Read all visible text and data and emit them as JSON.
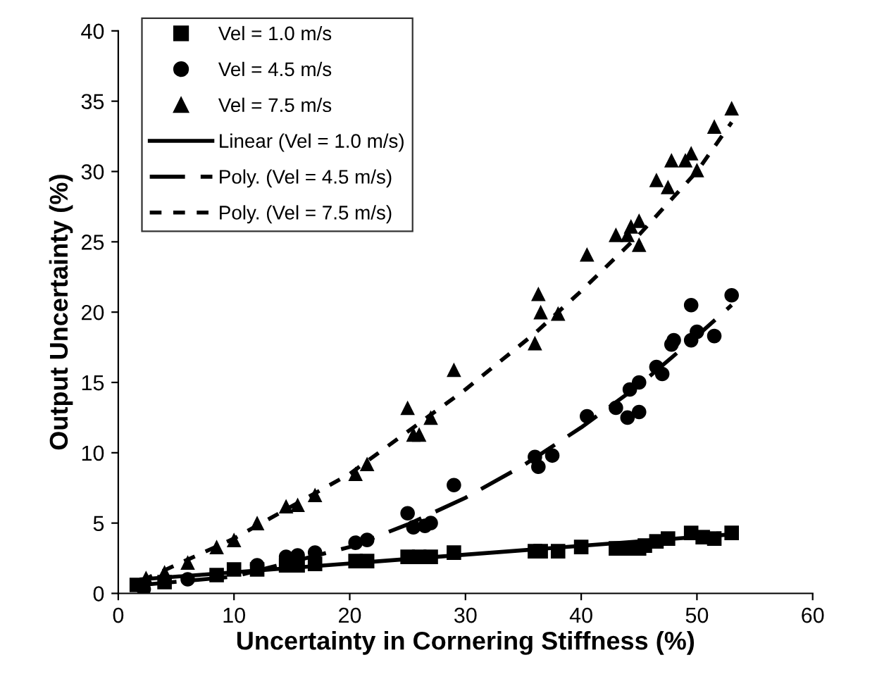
{
  "chart_data": {
    "type": "scatter",
    "xlabel": "Uncertainty in Cornering Stiffness (%)",
    "ylabel": "Output Uncertainty (%)",
    "xlim": [
      0,
      60
    ],
    "xticks": [
      0,
      10,
      20,
      30,
      40,
      50,
      60
    ],
    "ylim": [
      0,
      40
    ],
    "yticks": [
      0,
      5,
      10,
      15,
      20,
      25,
      30,
      35,
      40
    ],
    "grid": false,
    "legend": "top left",
    "series": [
      {
        "name": "Vel = 1.0 m/s",
        "marker": "square",
        "color": "#000000",
        "x": [
          1.6,
          4,
          8.5,
          10,
          12,
          14.5,
          15.5,
          17,
          20.5,
          21.5,
          25,
          26,
          27,
          29,
          36,
          36.5,
          38,
          40,
          43,
          44,
          45,
          45.5,
          46.5,
          47.5,
          49.5,
          50.5,
          51.5,
          53
        ],
        "values": [
          0.6,
          0.8,
          1.3,
          1.7,
          1.7,
          2.0,
          2.0,
          2.1,
          2.3,
          2.3,
          2.6,
          2.6,
          2.6,
          2.9,
          3.0,
          3.0,
          3.0,
          3.3,
          3.2,
          3.2,
          3.2,
          3.4,
          3.7,
          3.9,
          4.3,
          4.0,
          3.9,
          4.3
        ]
      },
      {
        "name": "Vel = 4.5 m/s",
        "marker": "circle",
        "color": "#000000",
        "x": [
          2.2,
          6,
          12,
          14.5,
          15.5,
          17,
          20.5,
          21.5,
          25,
          25.5,
          26.5,
          27,
          29,
          36,
          36.3,
          37.5,
          40.5,
          43,
          44,
          44.2,
          45,
          45,
          46.5,
          47,
          47.8,
          48,
          49.5,
          49.5,
          50,
          51.5,
          53
        ],
        "values": [
          0.3,
          1.0,
          2.0,
          2.6,
          2.7,
          2.9,
          3.6,
          3.8,
          5.7,
          4.7,
          4.8,
          5.0,
          7.7,
          9.7,
          9.0,
          9.8,
          12.6,
          13.2,
          12.5,
          14.5,
          12.9,
          15.0,
          16.1,
          15.6,
          17.7,
          18.0,
          18.0,
          20.5,
          18.6,
          18.3,
          21.2
        ]
      },
      {
        "name": "Vel = 7.5 m/s",
        "marker": "triangle",
        "color": "#000000",
        "x": [
          2.4,
          4,
          6,
          8.5,
          10,
          12,
          14.5,
          15.5,
          17,
          20.5,
          21.5,
          25,
          25.5,
          26,
          27,
          29,
          36,
          36.3,
          36.5,
          38,
          40.5,
          43,
          44,
          44.3,
          45,
          45,
          46.5,
          47.5,
          47.8,
          49,
          49.5,
          50,
          51.5,
          53
        ],
        "values": [
          1.1,
          1.5,
          2.2,
          3.3,
          3.8,
          5.0,
          6.2,
          6.3,
          7.0,
          8.5,
          9.2,
          13.2,
          11.3,
          11.3,
          12.5,
          15.9,
          17.8,
          21.3,
          20.0,
          19.9,
          24.1,
          25.5,
          25.5,
          26.1,
          26.5,
          24.8,
          29.4,
          28.9,
          30.8,
          30.8,
          31.3,
          30.1,
          33.2,
          34.5
        ]
      },
      {
        "name": "Linear (Vel = 1.0 m/s)",
        "type": "line",
        "line_style": "solid",
        "marker": "none",
        "color": "#000000",
        "x": [
          2,
          53
        ],
        "values": [
          1.0,
          4.2
        ]
      },
      {
        "name": "Poly. (Vel = 4.5 m/s)",
        "type": "line",
        "line_style": "dashed",
        "marker": "none",
        "color": "#000000",
        "x": [
          2,
          10,
          20,
          25,
          30,
          35,
          40,
          45,
          50,
          53
        ],
        "values": [
          0.6,
          1.2,
          3.3,
          4.9,
          6.8,
          9.1,
          11.8,
          14.8,
          18.3,
          20.5
        ]
      },
      {
        "name": "Poly. (Vel = 7.5 m/s)",
        "type": "line",
        "line_style": "dotted",
        "marker": "none",
        "color": "#000000",
        "x": [
          2,
          10,
          20,
          30,
          36,
          40,
          45,
          50,
          53
        ],
        "values": [
          0.9,
          3.9,
          8.5,
          14.5,
          18.5,
          21.5,
          25.5,
          30.0,
          33.5
        ]
      }
    ]
  }
}
